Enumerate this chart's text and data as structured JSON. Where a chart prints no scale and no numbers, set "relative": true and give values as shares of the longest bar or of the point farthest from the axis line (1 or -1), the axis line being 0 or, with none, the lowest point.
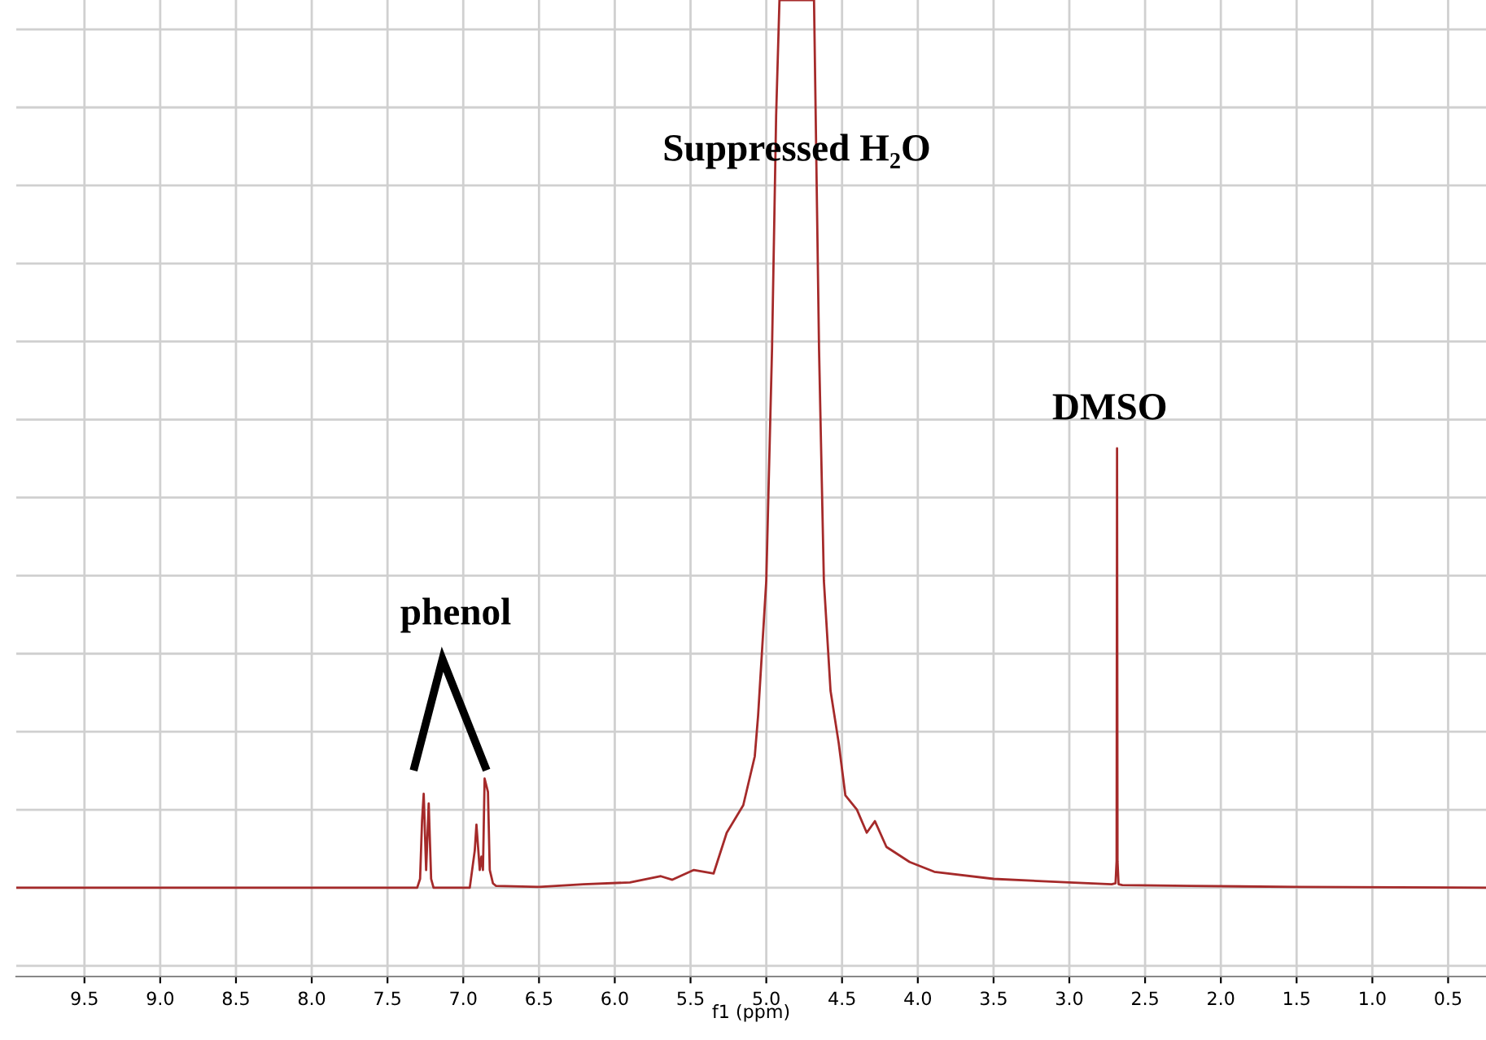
{
  "chart_data": {
    "type": "line",
    "relative": true,
    "xlabel": "f1 (ppm)",
    "x": [
      9.95,
      8.0,
      7.304,
      7.285,
      7.272,
      7.261,
      7.245,
      7.228,
      7.212,
      7.196,
      7.0,
      6.957,
      6.924,
      6.913,
      6.891,
      6.88,
      6.87,
      6.859,
      6.837,
      6.825,
      6.804,
      6.783,
      6.5,
      6.207,
      5.9,
      5.696,
      5.62,
      5.478,
      5.348,
      5.261,
      5.152,
      5.076,
      5.054,
      5.0,
      4.962,
      4.935,
      4.913,
      4.685,
      4.674,
      4.652,
      4.62,
      4.576,
      4.522,
      4.478,
      4.402,
      4.337,
      4.283,
      4.207,
      4.054,
      3.891,
      3.5,
      3.0,
      2.72,
      2.695,
      2.688,
      2.685,
      2.682,
      2.675,
      2.65,
      2.2,
      1.5,
      0.25
    ],
    "series": [
      {
        "color": "#a52a2a",
        "values": [
          0,
          0,
          0,
          0.01,
          0.075,
          0.106,
          0.02,
          0.095,
          0.01,
          0,
          0,
          0,
          0.042,
          0.071,
          0.02,
          0.035,
          0.02,
          0.123,
          0.108,
          0.02,
          0.005,
          0.002,
          0.001,
          0.004,
          0.006,
          0.013,
          0.009,
          0.02,
          0.016,
          0.062,
          0.093,
          0.148,
          0.194,
          0.346,
          0.608,
          0.87,
          1,
          1,
          0.87,
          0.608,
          0.346,
          0.222,
          0.163,
          0.104,
          0.088,
          0.062,
          0.075,
          0.046,
          0.029,
          0.018,
          0.01,
          0.006,
          0.004,
          0.005,
          0.03,
          0.495,
          0.03,
          0.004,
          0.003,
          0.002,
          0.001,
          0.0
        ]
      }
    ],
    "xlim": [
      9.95,
      0.25
    ],
    "xticks": [
      9.5,
      {
        "value": 9,
        "label": "9.0"
      },
      8.5,
      {
        "value": 8,
        "label": "8.0"
      },
      7.5,
      {
        "value": 7,
        "label": "7.0"
      },
      6.5,
      {
        "value": 6,
        "label": "6.0"
      },
      5.5,
      {
        "value": 5,
        "label": "5.0"
      },
      4.5,
      {
        "value": 4,
        "label": "4.0"
      },
      3.5,
      {
        "value": 3,
        "label": "3.0"
      },
      2.5,
      {
        "value": 2,
        "label": "2.0"
      },
      1.5,
      {
        "value": 1,
        "label": "1.0"
      },
      0.5
    ],
    "grid": true,
    "tick_labels": "x",
    "line_style": "solid",
    "marker": "none",
    "annotations": [
      "Suppressed H₂O",
      "DMSO",
      "phenol"
    ]
  }
}
